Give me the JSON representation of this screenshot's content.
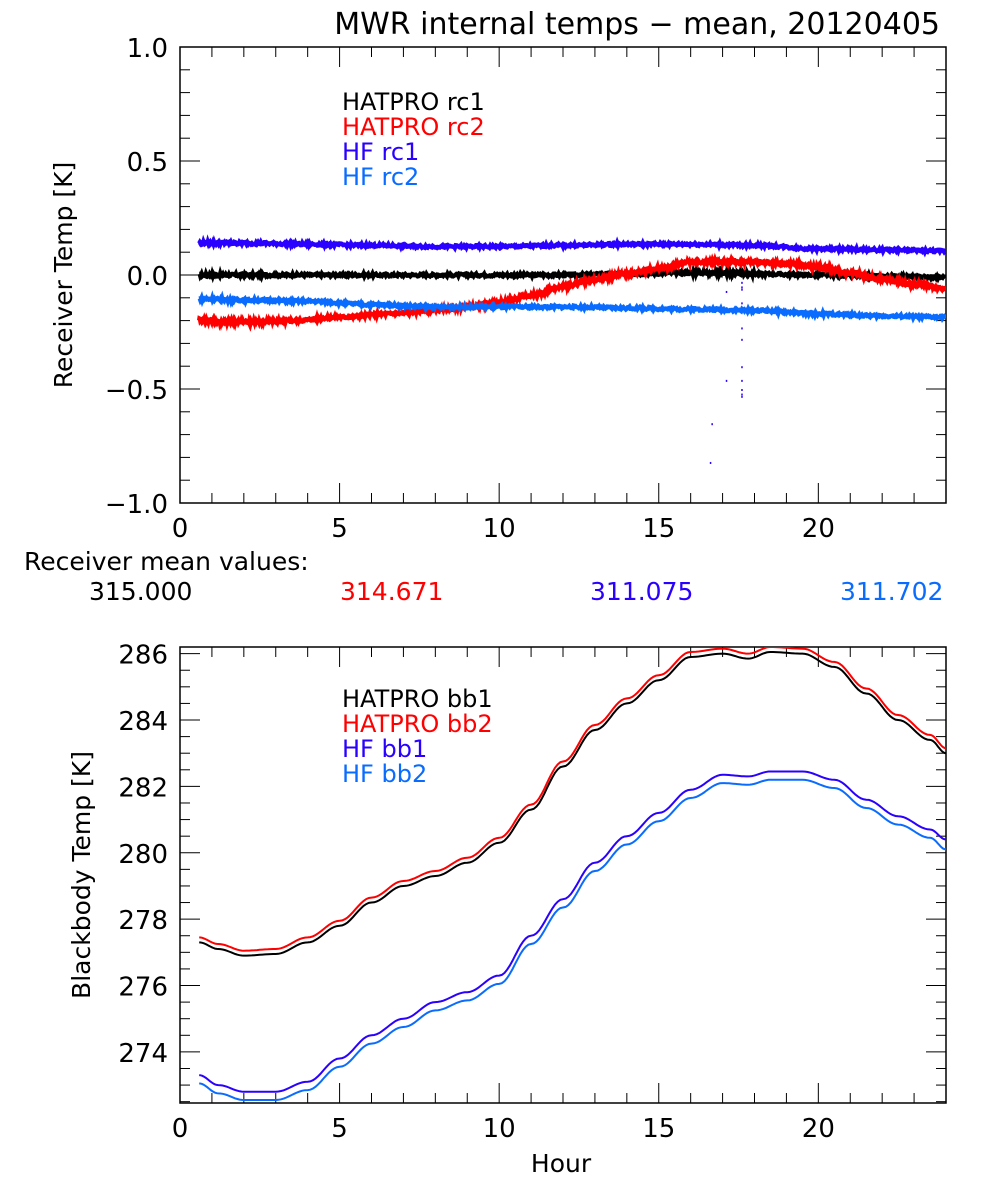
{
  "chart_data": [
    {
      "type": "line",
      "title": "MWR internal temps - mean, 20120405",
      "xlabel": "",
      "ylabel": "Receiver Temp [K]",
      "xlim": [
        0,
        24
      ],
      "ylim": [
        -1.0,
        1.0
      ],
      "xticks": [
        0,
        5,
        10,
        15,
        20
      ],
      "xtick_labels": [
        "0",
        "5",
        "10",
        "15",
        "20"
      ],
      "yticks": [
        -1.0,
        -0.5,
        0.0,
        0.5,
        1.0
      ],
      "ytick_labels": [
        "−1.0",
        "−0.5",
        "0.0",
        "0.5",
        "1.0"
      ],
      "grid": false,
      "legend_position": "top-left-center",
      "series": [
        {
          "name": "HATPRO rc1",
          "color": "#000000",
          "x": [
            0.6,
            2,
            4,
            6,
            8,
            10,
            12,
            14,
            16,
            17,
            18,
            20,
            22,
            24
          ],
          "y": [
            0.0,
            0.0,
            0.0,
            0.0,
            0.0,
            0.0,
            0.0,
            0.005,
            0.01,
            0.01,
            0.005,
            0.0,
            -0.005,
            -0.01
          ]
        },
        {
          "name": "HATPRO rc2",
          "color": "#ff0000",
          "x": [
            0.6,
            1.5,
            2.5,
            3.5,
            5,
            6.5,
            8,
            9,
            10,
            11,
            12,
            13,
            14,
            15,
            16,
            17,
            18,
            19,
            20,
            21,
            22,
            23,
            24
          ],
          "y": [
            -0.195,
            -0.205,
            -0.205,
            -0.2,
            -0.185,
            -0.17,
            -0.155,
            -0.14,
            -0.12,
            -0.09,
            -0.05,
            -0.02,
            0.005,
            0.03,
            0.055,
            0.06,
            0.058,
            0.05,
            0.035,
            0.01,
            -0.02,
            -0.04,
            -0.06
          ]
        },
        {
          "name": "HF rc1",
          "color": "#2a00ff",
          "x": [
            0.6,
            2,
            4,
            6,
            8,
            10,
            12,
            14,
            16,
            18,
            20,
            22,
            24
          ],
          "y": [
            0.14,
            0.14,
            0.135,
            0.13,
            0.125,
            0.125,
            0.13,
            0.135,
            0.135,
            0.13,
            0.115,
            0.11,
            0.105
          ]
        },
        {
          "name": "HF rc2",
          "color": "#0a6cff",
          "x": [
            0.6,
            2,
            4,
            6,
            8,
            10,
            12,
            14,
            16,
            18,
            20,
            22,
            24
          ],
          "y": [
            -0.105,
            -0.11,
            -0.115,
            -0.13,
            -0.14,
            -0.14,
            -0.14,
            -0.145,
            -0.15,
            -0.155,
            -0.17,
            -0.18,
            -0.185
          ]
        }
      ],
      "annotations": {
        "outlier_spikes_near_hour": 17.6,
        "outlier_min_value": -0.82
      }
    },
    {
      "type": "line",
      "title": "",
      "xlabel": "Hour",
      "ylabel": "Blackbody Temp [K]",
      "xlim": [
        0,
        24
      ],
      "ylim": [
        272.46,
        286.2
      ],
      "xticks": [
        0,
        5,
        10,
        15,
        20
      ],
      "xtick_labels": [
        "0",
        "5",
        "10",
        "15",
        "20"
      ],
      "yticks": [
        274,
        276,
        278,
        280,
        282,
        284,
        286
      ],
      "ytick_labels": [
        "274",
        "276",
        "278",
        "280",
        "282",
        "284",
        "286"
      ],
      "grid": false,
      "legend_position": "top-left-center",
      "series": [
        {
          "name": "HATPRO bb1",
          "color": "#000000",
          "x": [
            0.6,
            1.2,
            2,
            3,
            4,
            5,
            6,
            7,
            8,
            9,
            10,
            11,
            12,
            13,
            14,
            15,
            16,
            17,
            17.8,
            18.5,
            19.5,
            20.5,
            21.5,
            22.5,
            23.5,
            24
          ],
          "y": [
            277.3,
            277.1,
            276.9,
            276.95,
            277.3,
            277.8,
            278.5,
            279.0,
            279.3,
            279.7,
            280.3,
            281.3,
            282.6,
            283.7,
            284.5,
            285.2,
            285.9,
            286.0,
            285.85,
            286.05,
            286.0,
            285.6,
            284.8,
            284.0,
            283.4,
            283.0
          ]
        },
        {
          "name": "HATPRO bb2",
          "color": "#ff0000",
          "x": [
            0.6,
            1.2,
            2,
            3,
            4,
            5,
            6,
            7,
            8,
            9,
            10,
            11,
            12,
            13,
            14,
            15,
            16,
            17,
            17.8,
            18.5,
            19.5,
            20.5,
            21.5,
            22.5,
            23.5,
            24
          ],
          "y": [
            277.45,
            277.25,
            277.05,
            277.1,
            277.45,
            277.95,
            278.65,
            279.15,
            279.45,
            279.85,
            280.45,
            281.45,
            282.75,
            283.85,
            284.65,
            285.35,
            286.05,
            286.15,
            286.0,
            286.2,
            286.15,
            285.75,
            284.95,
            284.15,
            283.55,
            283.15
          ]
        },
        {
          "name": "HF bb1",
          "color": "#2a00ff",
          "x": [
            0.6,
            1.2,
            2,
            3,
            4,
            5,
            6,
            7,
            8,
            9,
            10,
            11,
            12,
            13,
            14,
            15,
            16,
            17,
            17.8,
            18.5,
            19.5,
            20.5,
            21.5,
            22.5,
            23.5,
            24
          ],
          "y": [
            273.3,
            273.0,
            272.8,
            272.8,
            273.1,
            273.8,
            274.5,
            275.0,
            275.5,
            275.8,
            276.3,
            277.5,
            278.6,
            279.7,
            280.5,
            281.2,
            281.9,
            282.35,
            282.3,
            282.45,
            282.45,
            282.2,
            281.6,
            281.1,
            280.7,
            280.4
          ]
        },
        {
          "name": "HF bb2",
          "color": "#0a6cff",
          "x": [
            0.6,
            1.2,
            2,
            3,
            4,
            5,
            6,
            7,
            8,
            9,
            10,
            11,
            12,
            13,
            14,
            15,
            16,
            17,
            17.8,
            18.5,
            19.5,
            20.5,
            21.5,
            22.5,
            23.5,
            24
          ],
          "y": [
            273.05,
            272.75,
            272.55,
            272.55,
            272.85,
            273.55,
            274.25,
            274.75,
            275.25,
            275.55,
            276.05,
            277.25,
            278.35,
            279.45,
            280.25,
            280.95,
            281.65,
            282.1,
            282.05,
            282.2,
            282.2,
            281.95,
            281.35,
            280.85,
            280.45,
            280.1
          ]
        }
      ]
    }
  ],
  "title": "MWR internal temps − mean, 20120405",
  "receiver_means": {
    "label": "Receiver mean values:",
    "values": [
      {
        "text": "315.000",
        "color": "#000000"
      },
      {
        "text": "314.671",
        "color": "#ff0000"
      },
      {
        "text": "311.075",
        "color": "#2a00ff"
      },
      {
        "text": "311.702",
        "color": "#0a6cff"
      }
    ]
  }
}
